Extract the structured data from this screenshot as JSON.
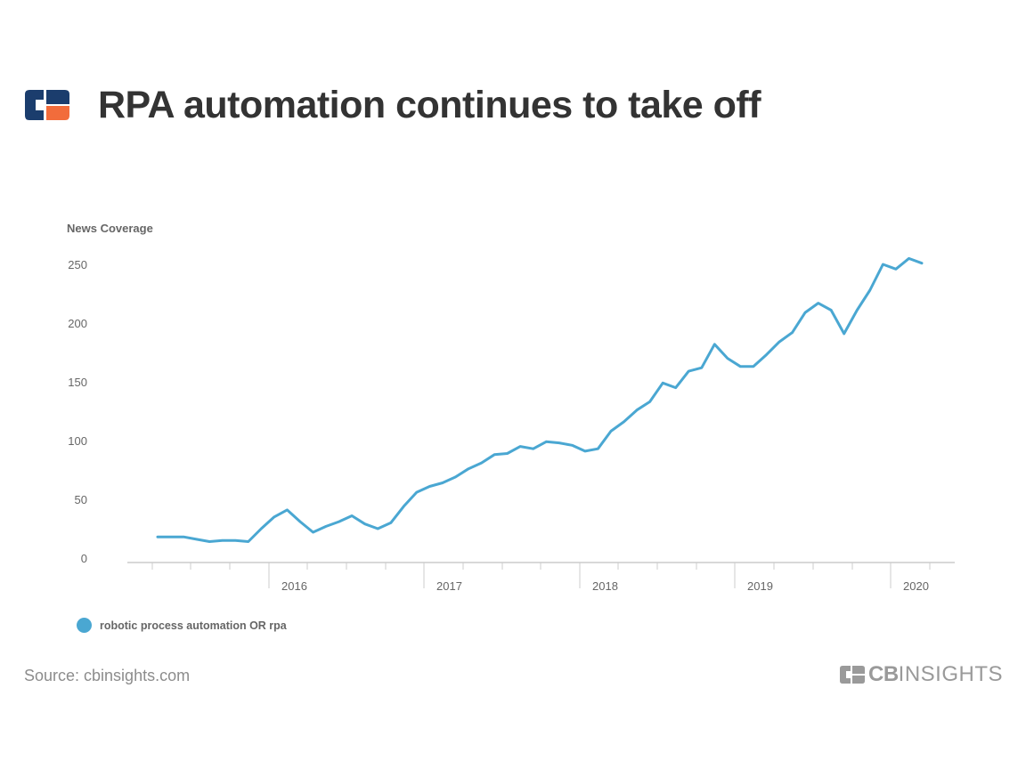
{
  "header": {
    "title": "RPA automation continues to take off"
  },
  "logo": {
    "icon": "cb-insights-logo-icon",
    "colors": {
      "navy": "#1b3d6d",
      "orange": "#f26c3b"
    }
  },
  "footer": {
    "source": "Source: cbinsights.com",
    "brand_bold": "CB",
    "brand_light": "INSIGHTS"
  },
  "chart_data": {
    "type": "line",
    "ylabel": "News Coverage",
    "xlabel": "",
    "ylim": [
      0,
      250
    ],
    "yticks": [
      0,
      50,
      100,
      150,
      200,
      250
    ],
    "year_labels": [
      "2016",
      "2017",
      "2018",
      "2019",
      "2020"
    ],
    "grid": false,
    "legend_position": "bottom-left",
    "series": [
      {
        "name": "robotic process automation OR rpa",
        "color": "#4aa7d2",
        "values": [
          18,
          18,
          18,
          16,
          14,
          15,
          15,
          14,
          25,
          35,
          41,
          31,
          22,
          27,
          31,
          36,
          29,
          25,
          30,
          44,
          56,
          61,
          64,
          69,
          76,
          81,
          88,
          89,
          95,
          93,
          99,
          98,
          96,
          91,
          93,
          108,
          116,
          126,
          133,
          149,
          145,
          159,
          162,
          182,
          170,
          163,
          163,
          173,
          184,
          192,
          209,
          217,
          211,
          191,
          211,
          228,
          250,
          246,
          255,
          251
        ]
      }
    ]
  }
}
